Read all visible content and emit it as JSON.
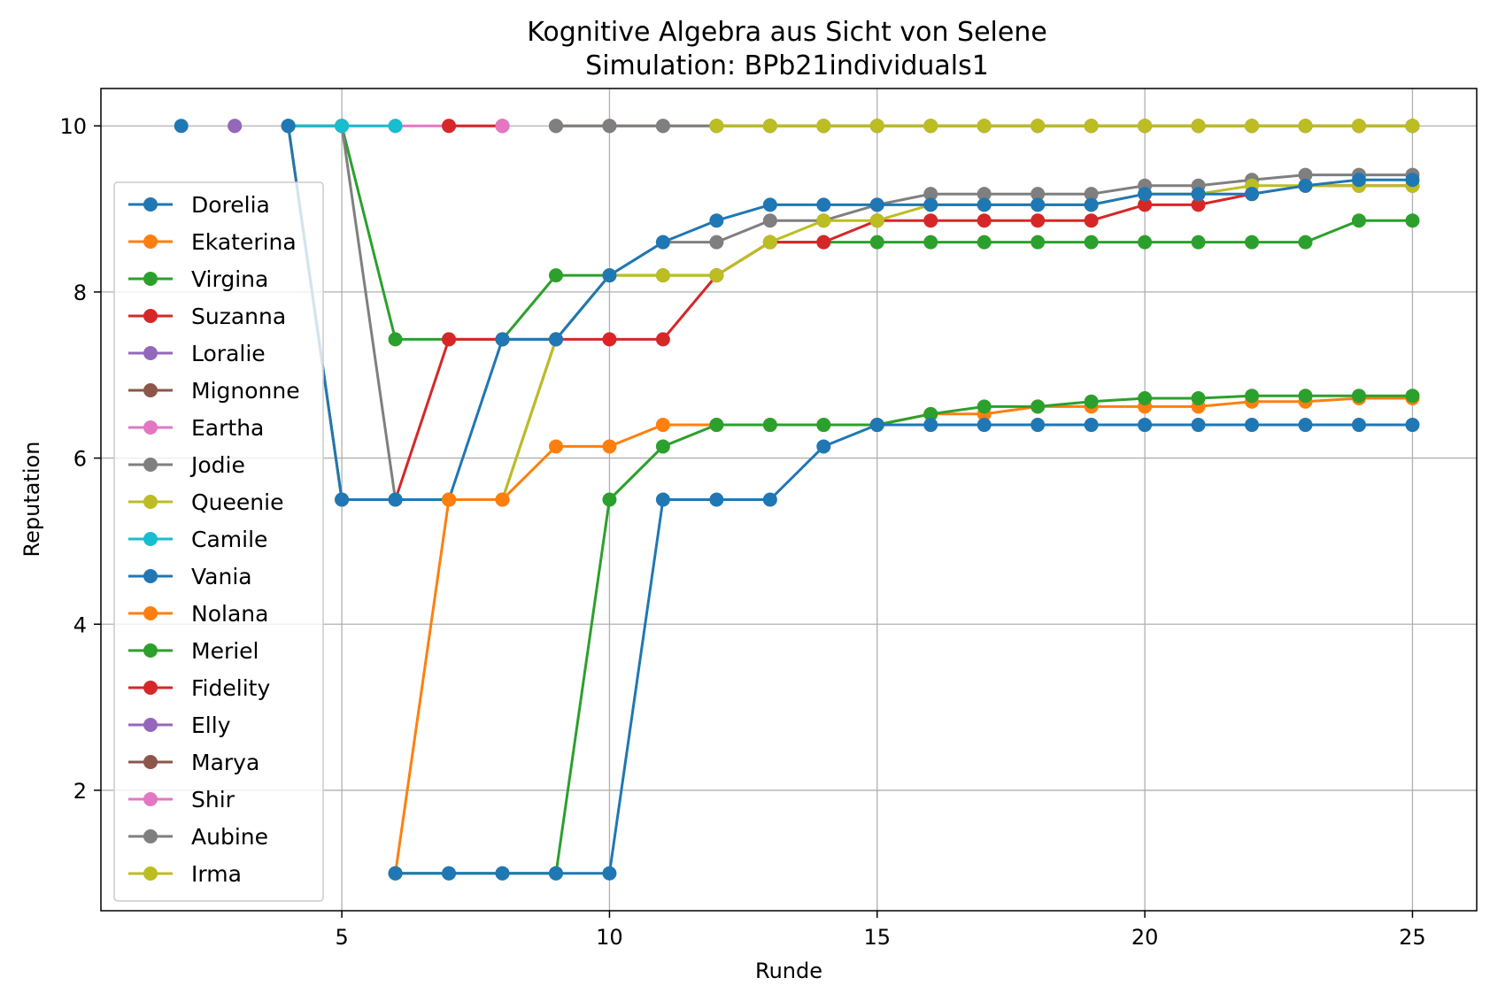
{
  "chart_data": {
    "type": "line",
    "title": "Kognitive Algebra aus Sicht von Selene",
    "subtitle": "Simulation: BPb21individuals1",
    "xlabel": "Runde",
    "ylabel": "Reputation",
    "xlim": [
      0.5,
      26.2
    ],
    "ylim": [
      0.55,
      10.45
    ],
    "xticks": [
      5,
      10,
      15,
      20,
      25
    ],
    "yticks": [
      2,
      4,
      6,
      8,
      10
    ],
    "grid": true,
    "legend_position": "left",
    "series": [
      {
        "name": "Dorelia",
        "color": "#1f77b4",
        "x": [
          2
        ],
        "y": [
          10
        ]
      },
      {
        "name": "Ekaterina",
        "color": "#ff7f0e",
        "x": [
          3
        ],
        "y": [
          10
        ]
      },
      {
        "name": "Virgina",
        "color": "#2ca02c",
        "x": [
          4,
          5,
          6,
          7,
          8,
          9,
          10,
          11,
          12,
          13,
          14,
          15,
          16,
          17,
          18,
          19,
          20,
          21,
          22,
          23,
          24,
          25
        ],
        "y": [
          10,
          10,
          7.43,
          7.43,
          7.43,
          8.2,
          8.2,
          8.2,
          8.2,
          8.6,
          8.6,
          8.6,
          8.6,
          8.6,
          8.6,
          8.6,
          8.6,
          8.6,
          8.6,
          8.6,
          8.86,
          8.86
        ]
      },
      {
        "name": "Suzanna",
        "color": "#d62728",
        "x": [
          4,
          5,
          6,
          7,
          8,
          9,
          10,
          11,
          12,
          13,
          14,
          15,
          16,
          17,
          18,
          19,
          20,
          21,
          22,
          23,
          24,
          25
        ],
        "y": [
          10,
          5.5,
          5.5,
          7.43,
          7.43,
          7.43,
          7.43,
          7.43,
          8.2,
          8.6,
          8.6,
          8.86,
          8.86,
          8.86,
          8.86,
          8.86,
          9.05,
          9.05,
          9.18,
          9.28,
          9.28,
          9.28
        ]
      },
      {
        "name": "Loralie",
        "color": "#9467bd",
        "x": [
          3
        ],
        "y": [
          10
        ]
      },
      {
        "name": "Mignonne",
        "color": "#8c564b",
        "x": [
          4,
          5
        ],
        "y": [
          10,
          10
        ]
      },
      {
        "name": "Eartha",
        "color": "#e377c2",
        "x": [
          5,
          6,
          7,
          8
        ],
        "y": [
          10,
          10,
          10,
          10
        ]
      },
      {
        "name": "Jodie",
        "color": "#7f7f7f",
        "x": [
          4,
          5,
          6,
          7,
          8,
          9,
          10,
          11,
          12,
          13,
          14,
          15,
          16,
          17,
          18,
          19,
          20,
          21,
          22,
          23,
          24,
          25
        ],
        "y": [
          10,
          10,
          5.5,
          5.5,
          5.5,
          7.43,
          8.2,
          8.6,
          8.6,
          8.86,
          8.86,
          9.05,
          9.18,
          9.18,
          9.18,
          9.18,
          9.28,
          9.28,
          9.35,
          9.41,
          9.41,
          9.41
        ]
      },
      {
        "name": "Queenie",
        "color": "#bcbd22",
        "x": [
          4,
          5,
          6,
          7,
          8,
          9,
          10,
          11,
          12,
          13,
          14,
          15,
          16,
          17,
          18,
          19,
          20,
          21,
          22,
          23,
          24,
          25
        ],
        "y": [
          10,
          5.5,
          5.5,
          5.5,
          5.5,
          7.43,
          8.2,
          8.2,
          8.2,
          8.6,
          8.86,
          8.86,
          9.05,
          9.05,
          9.05,
          9.05,
          9.18,
          9.18,
          9.28,
          9.28,
          9.28,
          9.28
        ]
      },
      {
        "name": "Camile",
        "color": "#17becf",
        "x": [
          4,
          5,
          6
        ],
        "y": [
          10,
          10,
          10
        ]
      },
      {
        "name": "Vania",
        "color": "#1f77b4",
        "x": [
          4,
          5,
          6,
          7,
          8,
          9,
          10,
          11,
          12,
          13,
          14,
          15,
          16,
          17,
          18,
          19,
          20,
          21,
          22,
          23,
          24,
          25
        ],
        "y": [
          10,
          5.5,
          5.5,
          5.5,
          7.43,
          7.43,
          8.2,
          8.6,
          8.86,
          9.05,
          9.05,
          9.05,
          9.05,
          9.05,
          9.05,
          9.05,
          9.18,
          9.18,
          9.18,
          9.28,
          9.35,
          9.35
        ]
      },
      {
        "name": "Nolana",
        "color": "#ff7f0e",
        "x": [
          6,
          7,
          8,
          9,
          10,
          11,
          12,
          13,
          14,
          15,
          16,
          17,
          18,
          19,
          20,
          21,
          22,
          23,
          24,
          25
        ],
        "y": [
          1,
          5.5,
          5.5,
          6.14,
          6.14,
          6.4,
          6.4,
          6.4,
          6.4,
          6.4,
          6.53,
          6.53,
          6.62,
          6.62,
          6.62,
          6.62,
          6.68,
          6.68,
          6.72,
          6.72
        ]
      },
      {
        "name": "Meriel",
        "color": "#2ca02c",
        "x": [
          6,
          7,
          8,
          9,
          10,
          11,
          12,
          13,
          14,
          15,
          16,
          17,
          18,
          19,
          20,
          21,
          22,
          23,
          24,
          25
        ],
        "y": [
          1,
          1,
          1,
          1,
          5.5,
          6.14,
          6.4,
          6.4,
          6.4,
          6.4,
          6.53,
          6.62,
          6.62,
          6.68,
          6.72,
          6.72,
          6.75,
          6.75,
          6.75,
          6.75
        ]
      },
      {
        "name": "Fidelity",
        "color": "#d62728",
        "x": [
          7,
          8
        ],
        "y": [
          10,
          10
        ]
      },
      {
        "name": "Elly",
        "color": "#9467bd",
        "x": [],
        "y": []
      },
      {
        "name": "Marya",
        "color": "#8c564b",
        "x": [
          9,
          10,
          11,
          12,
          13,
          14,
          15,
          16,
          17,
          18,
          19,
          20,
          21,
          22,
          23,
          24,
          25
        ],
        "y": [
          10,
          10,
          10,
          10,
          10,
          10,
          10,
          10,
          10,
          10,
          10,
          10,
          10,
          10,
          10,
          10,
          10
        ]
      },
      {
        "name": "Shir",
        "color": "#e377c2",
        "x": [
          8
        ],
        "y": [
          10
        ]
      },
      {
        "name": "Aubine",
        "color": "#7f7f7f",
        "x": [
          9,
          10,
          11,
          12,
          13,
          14,
          15,
          16,
          17,
          18,
          19,
          20,
          21,
          22,
          23,
          24,
          25
        ],
        "y": [
          10,
          10,
          10,
          10,
          10,
          10,
          10,
          10,
          10,
          10,
          10,
          10,
          10,
          10,
          10,
          10,
          10
        ]
      },
      {
        "name": "Irma",
        "color": "#bcbd22",
        "x": [
          12,
          13,
          14,
          15,
          16,
          17,
          18,
          19,
          20,
          21,
          22,
          23,
          24,
          25
        ],
        "y": [
          10,
          10,
          10,
          10,
          10,
          10,
          10,
          10,
          10,
          10,
          10,
          10,
          10,
          10
        ]
      },
      {
        "name": "",
        "color": "#1f77b4",
        "x": [
          6,
          7,
          8,
          9,
          10,
          11,
          12,
          13,
          14,
          15,
          16,
          17,
          18,
          19,
          20,
          21,
          22,
          23,
          24,
          25
        ],
        "y": [
          1,
          1,
          1,
          1,
          1,
          5.5,
          5.5,
          5.5,
          6.14,
          6.4,
          6.4,
          6.4,
          6.4,
          6.4,
          6.4,
          6.4,
          6.4,
          6.4,
          6.4,
          6.4
        ]
      }
    ]
  }
}
